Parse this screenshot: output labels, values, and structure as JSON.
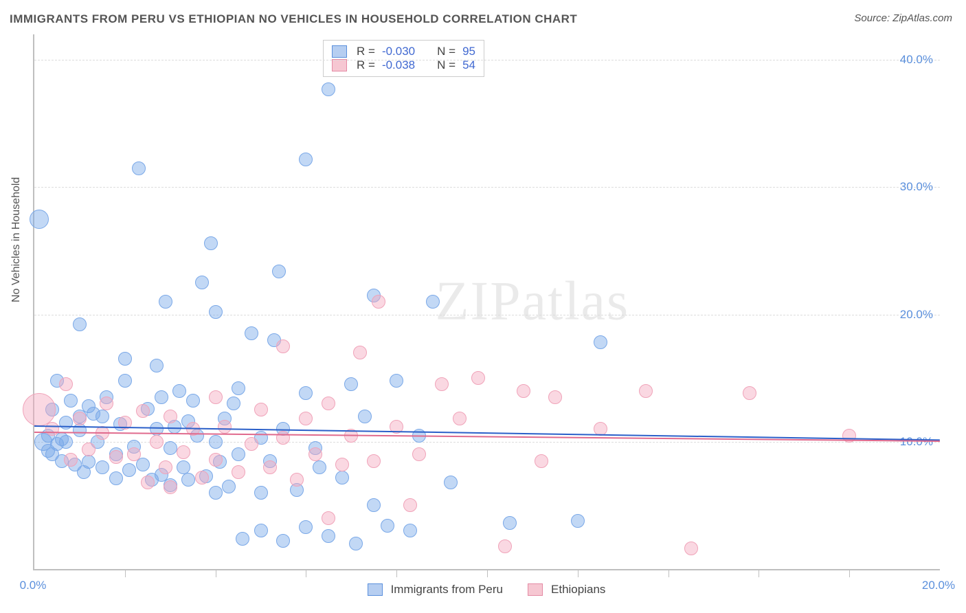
{
  "title": "IMMIGRANTS FROM PERU VS ETHIOPIAN NO VEHICLES IN HOUSEHOLD CORRELATION CHART",
  "source_label": "Source:",
  "source_name": "ZipAtlas.com",
  "watermark": "ZIPatlas",
  "y_axis_title": "No Vehicles in Household",
  "chart": {
    "type": "scatter",
    "xlim": [
      0,
      20
    ],
    "ylim": [
      0,
      42
    ],
    "background_color": "#ffffff",
    "grid_color": "#dcdcdc",
    "axis_color": "#bfbfbf",
    "tick_label_color": "#5a8fdc",
    "tick_fontsize": 17,
    "y_ticks": [
      {
        "v": 10,
        "label": "10.0%"
      },
      {
        "v": 20,
        "label": "20.0%"
      },
      {
        "v": 30,
        "label": "30.0%"
      },
      {
        "v": 40,
        "label": "40.0%"
      }
    ],
    "x_ticks_minor": [
      2,
      4,
      6,
      8,
      10,
      12,
      14,
      16,
      18
    ],
    "x_labels": [
      {
        "v": 0,
        "label": "0.0%"
      },
      {
        "v": 20,
        "label": "20.0%"
      }
    ],
    "stats": [
      {
        "r_label": "R =",
        "r": "-0.030",
        "n_label": "N =",
        "n": "95",
        "swatch_fill": "#b6cef1",
        "swatch_border": "#5a8fdc"
      },
      {
        "r_label": "R =",
        "r": "-0.038",
        "n_label": "N =",
        "n": "54",
        "swatch_fill": "#f6c7d2",
        "swatch_border": "#e48aa4"
      }
    ],
    "legend_series": [
      {
        "label": "Immigrants from Peru",
        "fill": "#b6cef1",
        "border": "#5a8fdc"
      },
      {
        "label": "Ethiopians",
        "fill": "#f6c7d2",
        "border": "#e48aa4"
      }
    ],
    "regression_lines": [
      {
        "series": "peru",
        "color": "#2a5fc9",
        "x1": 0,
        "y1": 11.3,
        "x2": 20,
        "y2": 10.2,
        "width": 2
      },
      {
        "series": "eth",
        "color": "#e06a8d",
        "x1": 0,
        "y1": 10.8,
        "x2": 20,
        "y2": 10.1,
        "width": 2
      }
    ],
    "series_style": {
      "peru": {
        "fill": "rgba(120,168,232,0.45)",
        "stroke": "#7aa8e8",
        "default_r": 10
      },
      "eth": {
        "fill": "rgba(244,168,190,0.45)",
        "stroke": "#f0a3b9",
        "default_r": 10
      }
    },
    "points": {
      "peru": [
        {
          "x": 0.1,
          "y": 27.5,
          "r": 14
        },
        {
          "x": 0.2,
          "y": 10.0,
          "r": 13
        },
        {
          "x": 0.3,
          "y": 9.3
        },
        {
          "x": 0.3,
          "y": 10.5
        },
        {
          "x": 0.4,
          "y": 9.0
        },
        {
          "x": 0.4,
          "y": 12.5
        },
        {
          "x": 0.5,
          "y": 14.8
        },
        {
          "x": 0.5,
          "y": 9.8
        },
        {
          "x": 0.6,
          "y": 10.2
        },
        {
          "x": 0.6,
          "y": 8.5
        },
        {
          "x": 0.7,
          "y": 11.5
        },
        {
          "x": 0.7,
          "y": 10.0
        },
        {
          "x": 0.8,
          "y": 13.2
        },
        {
          "x": 0.9,
          "y": 8.2
        },
        {
          "x": 1.0,
          "y": 10.9
        },
        {
          "x": 1.0,
          "y": 12.0
        },
        {
          "x": 1.0,
          "y": 19.2
        },
        {
          "x": 1.1,
          "y": 7.6
        },
        {
          "x": 1.2,
          "y": 12.8
        },
        {
          "x": 1.2,
          "y": 8.4
        },
        {
          "x": 1.3,
          "y": 12.2
        },
        {
          "x": 1.4,
          "y": 10.0
        },
        {
          "x": 1.5,
          "y": 8.0
        },
        {
          "x": 1.5,
          "y": 12.0
        },
        {
          "x": 1.6,
          "y": 13.5
        },
        {
          "x": 1.8,
          "y": 7.1
        },
        {
          "x": 1.8,
          "y": 9.0
        },
        {
          "x": 1.9,
          "y": 11.4
        },
        {
          "x": 2.0,
          "y": 14.8
        },
        {
          "x": 2.0,
          "y": 16.5
        },
        {
          "x": 2.1,
          "y": 7.8
        },
        {
          "x": 2.2,
          "y": 9.6
        },
        {
          "x": 2.3,
          "y": 31.5
        },
        {
          "x": 2.4,
          "y": 8.2
        },
        {
          "x": 2.5,
          "y": 12.6
        },
        {
          "x": 2.6,
          "y": 7.0
        },
        {
          "x": 2.7,
          "y": 11.0
        },
        {
          "x": 2.7,
          "y": 16.0
        },
        {
          "x": 2.8,
          "y": 13.5
        },
        {
          "x": 2.8,
          "y": 7.4
        },
        {
          "x": 2.9,
          "y": 21.0
        },
        {
          "x": 3.0,
          "y": 9.5
        },
        {
          "x": 3.0,
          "y": 6.6
        },
        {
          "x": 3.1,
          "y": 11.2
        },
        {
          "x": 3.2,
          "y": 14.0
        },
        {
          "x": 3.3,
          "y": 8.0
        },
        {
          "x": 3.4,
          "y": 11.6
        },
        {
          "x": 3.4,
          "y": 7.0
        },
        {
          "x": 3.5,
          "y": 13.2
        },
        {
          "x": 3.6,
          "y": 10.5
        },
        {
          "x": 3.7,
          "y": 22.5
        },
        {
          "x": 3.8,
          "y": 7.3
        },
        {
          "x": 3.9,
          "y": 25.6
        },
        {
          "x": 4.0,
          "y": 10.0
        },
        {
          "x": 4.0,
          "y": 20.2
        },
        {
          "x": 4.0,
          "y": 6.0
        },
        {
          "x": 4.1,
          "y": 8.4
        },
        {
          "x": 4.2,
          "y": 11.8
        },
        {
          "x": 4.3,
          "y": 6.5
        },
        {
          "x": 4.4,
          "y": 13.0
        },
        {
          "x": 4.5,
          "y": 9.0
        },
        {
          "x": 4.5,
          "y": 14.2
        },
        {
          "x": 4.6,
          "y": 2.4
        },
        {
          "x": 4.8,
          "y": 18.5
        },
        {
          "x": 5.0,
          "y": 10.3
        },
        {
          "x": 5.0,
          "y": 6.0
        },
        {
          "x": 5.0,
          "y": 3.0
        },
        {
          "x": 5.2,
          "y": 8.5
        },
        {
          "x": 5.3,
          "y": 18.0
        },
        {
          "x": 5.4,
          "y": 23.4
        },
        {
          "x": 5.5,
          "y": 11.0
        },
        {
          "x": 5.5,
          "y": 2.2
        },
        {
          "x": 5.8,
          "y": 6.2
        },
        {
          "x": 6.0,
          "y": 13.8
        },
        {
          "x": 6.0,
          "y": 32.2
        },
        {
          "x": 6.0,
          "y": 3.3
        },
        {
          "x": 6.2,
          "y": 9.5
        },
        {
          "x": 6.3,
          "y": 8.0
        },
        {
          "x": 6.5,
          "y": 37.7
        },
        {
          "x": 6.5,
          "y": 2.6
        },
        {
          "x": 6.8,
          "y": 7.2
        },
        {
          "x": 7.0,
          "y": 14.5
        },
        {
          "x": 7.1,
          "y": 2.0
        },
        {
          "x": 7.3,
          "y": 12.0
        },
        {
          "x": 7.5,
          "y": 21.5
        },
        {
          "x": 7.5,
          "y": 5.0
        },
        {
          "x": 7.8,
          "y": 3.4
        },
        {
          "x": 8.0,
          "y": 14.8
        },
        {
          "x": 8.3,
          "y": 3.0
        },
        {
          "x": 8.5,
          "y": 10.5
        },
        {
          "x": 8.8,
          "y": 21.0
        },
        {
          "x": 9.2,
          "y": 6.8
        },
        {
          "x": 10.5,
          "y": 3.6
        },
        {
          "x": 12.0,
          "y": 3.8
        },
        {
          "x": 12.5,
          "y": 17.8
        }
      ],
      "eth": [
        {
          "x": 0.1,
          "y": 12.5,
          "r": 24
        },
        {
          "x": 0.4,
          "y": 11.0
        },
        {
          "x": 0.7,
          "y": 14.5
        },
        {
          "x": 0.8,
          "y": 8.6
        },
        {
          "x": 1.0,
          "y": 11.8
        },
        {
          "x": 1.2,
          "y": 9.4
        },
        {
          "x": 1.5,
          "y": 10.7
        },
        {
          "x": 1.6,
          "y": 13.0
        },
        {
          "x": 1.8,
          "y": 8.8
        },
        {
          "x": 2.0,
          "y": 11.5
        },
        {
          "x": 2.2,
          "y": 9.0
        },
        {
          "x": 2.4,
          "y": 12.4
        },
        {
          "x": 2.5,
          "y": 6.8
        },
        {
          "x": 2.7,
          "y": 10.0
        },
        {
          "x": 2.9,
          "y": 8.0
        },
        {
          "x": 3.0,
          "y": 12.0
        },
        {
          "x": 3.0,
          "y": 6.4
        },
        {
          "x": 3.3,
          "y": 9.2
        },
        {
          "x": 3.5,
          "y": 11.0
        },
        {
          "x": 3.7,
          "y": 7.2
        },
        {
          "x": 4.0,
          "y": 13.5
        },
        {
          "x": 4.0,
          "y": 8.6
        },
        {
          "x": 4.2,
          "y": 11.2
        },
        {
          "x": 4.5,
          "y": 7.6
        },
        {
          "x": 4.8,
          "y": 9.8
        },
        {
          "x": 5.0,
          "y": 12.5
        },
        {
          "x": 5.2,
          "y": 8.0
        },
        {
          "x": 5.5,
          "y": 10.3
        },
        {
          "x": 5.5,
          "y": 17.5
        },
        {
          "x": 5.8,
          "y": 7.0
        },
        {
          "x": 6.0,
          "y": 11.8
        },
        {
          "x": 6.2,
          "y": 9.0
        },
        {
          "x": 6.5,
          "y": 13.0
        },
        {
          "x": 6.5,
          "y": 4.0
        },
        {
          "x": 6.8,
          "y": 8.2
        },
        {
          "x": 7.0,
          "y": 10.5
        },
        {
          "x": 7.2,
          "y": 17.0
        },
        {
          "x": 7.5,
          "y": 8.5
        },
        {
          "x": 7.6,
          "y": 21.0
        },
        {
          "x": 8.0,
          "y": 11.2
        },
        {
          "x": 8.3,
          "y": 5.0
        },
        {
          "x": 8.5,
          "y": 9.0
        },
        {
          "x": 9.0,
          "y": 14.5
        },
        {
          "x": 9.4,
          "y": 11.8
        },
        {
          "x": 9.8,
          "y": 15.0
        },
        {
          "x": 10.4,
          "y": 1.8
        },
        {
          "x": 10.8,
          "y": 14.0
        },
        {
          "x": 11.2,
          "y": 8.5
        },
        {
          "x": 11.5,
          "y": 13.5
        },
        {
          "x": 12.5,
          "y": 11.0
        },
        {
          "x": 13.5,
          "y": 14.0
        },
        {
          "x": 14.5,
          "y": 1.6
        },
        {
          "x": 15.8,
          "y": 13.8
        },
        {
          "x": 18.0,
          "y": 10.5
        }
      ]
    }
  }
}
